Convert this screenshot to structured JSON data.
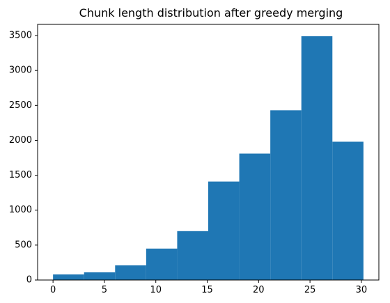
{
  "chart_data": {
    "type": "bar",
    "title": "Chunk length distribution after greedy merging",
    "xlabel": "",
    "ylabel": "",
    "xlim": [
      -1.5,
      31.7
    ],
    "ylim": [
      0,
      3660
    ],
    "bins": [
      {
        "start": 0.0,
        "end": 3.02,
        "count": 80
      },
      {
        "start": 3.02,
        "end": 6.04,
        "count": 110
      },
      {
        "start": 6.04,
        "end": 9.06,
        "count": 210
      },
      {
        "start": 9.06,
        "end": 12.08,
        "count": 450
      },
      {
        "start": 12.08,
        "end": 15.1,
        "count": 700
      },
      {
        "start": 15.1,
        "end": 18.12,
        "count": 1410
      },
      {
        "start": 18.12,
        "end": 21.14,
        "count": 1810
      },
      {
        "start": 21.14,
        "end": 24.16,
        "count": 2430
      },
      {
        "start": 24.16,
        "end": 27.18,
        "count": 3490
      },
      {
        "start": 27.18,
        "end": 30.2,
        "count": 1980
      }
    ],
    "x_ticks": [
      {
        "value": 0,
        "label": "0"
      },
      {
        "value": 5,
        "label": "5"
      },
      {
        "value": 10,
        "label": "10"
      },
      {
        "value": 15,
        "label": "15"
      },
      {
        "value": 20,
        "label": "20"
      },
      {
        "value": 25,
        "label": "25"
      },
      {
        "value": 30,
        "label": "30"
      }
    ],
    "y_ticks": [
      {
        "value": 0,
        "label": "0"
      },
      {
        "value": 500,
        "label": "500"
      },
      {
        "value": 1000,
        "label": "1000"
      },
      {
        "value": 1500,
        "label": "1500"
      },
      {
        "value": 2000,
        "label": "2000"
      },
      {
        "value": 2500,
        "label": "2500"
      },
      {
        "value": 3000,
        "label": "3000"
      },
      {
        "value": 3500,
        "label": "3500"
      }
    ],
    "bar_color": "#1f77b4",
    "grid": false,
    "legend": "none"
  }
}
